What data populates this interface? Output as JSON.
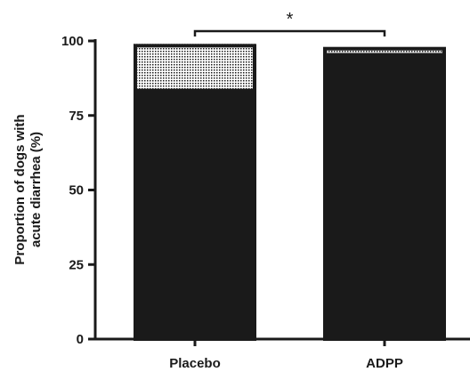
{
  "chart_data": {
    "type": "bar",
    "stacked": true,
    "categories": [
      "Placebo",
      "ADPP"
    ],
    "series": [
      {
        "values": [
          84,
          96
        ]
      },
      {
        "values": [
          15,
          2
        ]
      }
    ],
    "ylabel_lines": [
      "Proportion of dogs with",
      "acute diarrhea (%)"
    ],
    "ylim": [
      0,
      100
    ],
    "yticks": [
      "0",
      "25",
      "50",
      "75",
      "100"
    ],
    "significance": {
      "between": [
        "Placebo",
        "ADPP"
      ],
      "label": "*"
    },
    "grid": false,
    "colors": {
      "solid": "#1a1a1a",
      "dotted_fill": "#ffffff",
      "dotted_dot": "#1a1a1a"
    }
  }
}
